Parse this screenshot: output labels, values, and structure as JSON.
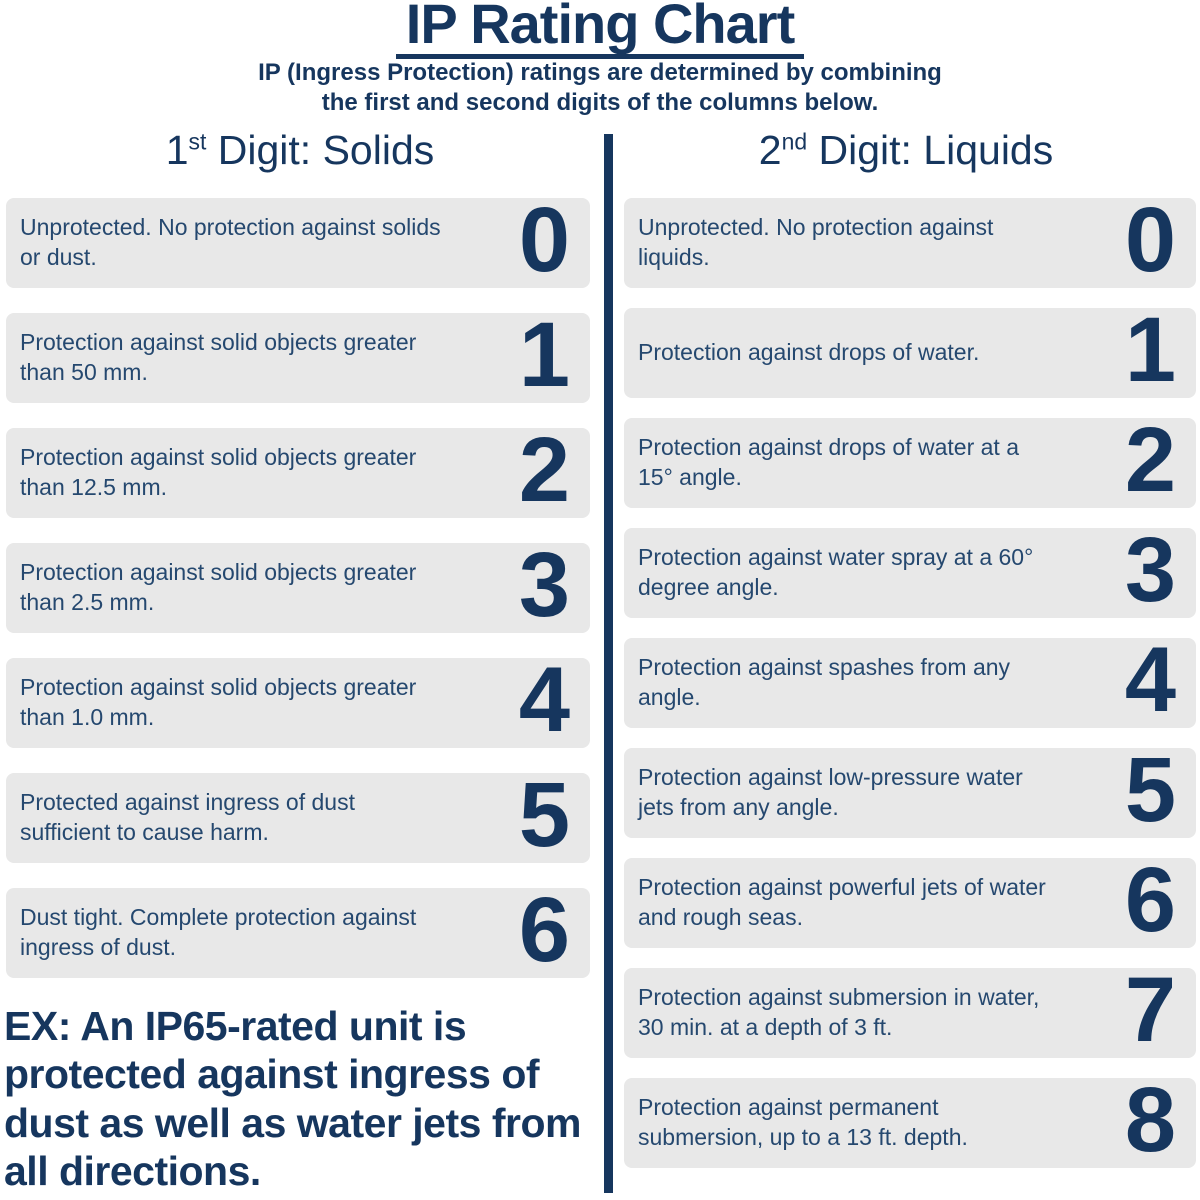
{
  "header": {
    "title": "IP Rating Chart",
    "subtitle_line1": "IP (Ingress Protection) ratings are determined by combining",
    "subtitle_line2": "the first and second digits of the columns below."
  },
  "chart_data": {
    "type": "table",
    "title": "IP Rating Chart",
    "columns": [
      {
        "heading": {
          "number": "1",
          "ordinal": "st",
          "label": " Digit: Solids"
        },
        "rows": [
          {
            "digit": "0",
            "description": "Unprotected. No protection against solids or dust."
          },
          {
            "digit": "1",
            "description": "Protection against solid objects greater than 50 mm."
          },
          {
            "digit": "2",
            "description": "Protection against solid objects greater than 12.5 mm."
          },
          {
            "digit": "3",
            "description": "Protection against solid objects greater than 2.5 mm."
          },
          {
            "digit": "4",
            "description": "Protection against solid objects greater than 1.0 mm."
          },
          {
            "digit": "5",
            "description": "Protected against ingress of dust sufficient to cause harm."
          },
          {
            "digit": "6",
            "description": "Dust tight. Complete protection against ingress of dust."
          }
        ]
      },
      {
        "heading": {
          "number": "2",
          "ordinal": "nd",
          "label": " Digit: Liquids"
        },
        "rows": [
          {
            "digit": "0",
            "description": "Unprotected. No protection against liquids."
          },
          {
            "digit": "1",
            "description": "Protection against drops of water."
          },
          {
            "digit": "2",
            "description": "Protection against drops of water at a 15° angle."
          },
          {
            "digit": "3",
            "description": "Protection against water spray at a 60° degree angle."
          },
          {
            "digit": "4",
            "description": "Protection against spashes from any angle."
          },
          {
            "digit": "5",
            "description": "Protection against low-pressure water jets from any angle."
          },
          {
            "digit": "6",
            "description": "Protection against powerful jets of water and rough seas."
          },
          {
            "digit": "7",
            "description": "Protection against submersion in water, 30 min. at a depth of 3 ft."
          },
          {
            "digit": "8",
            "description": "Protection against permanent submersion, up to a 13 ft. depth."
          }
        ]
      }
    ]
  },
  "example": {
    "text": "EX: An IP65-rated unit is protected against ingress of dust as well as water jets from all directions."
  },
  "colors": {
    "navy": "#16365e",
    "row_text": "#25486f",
    "row_background": "#e8e8e8",
    "page_background": "#ffffff"
  }
}
